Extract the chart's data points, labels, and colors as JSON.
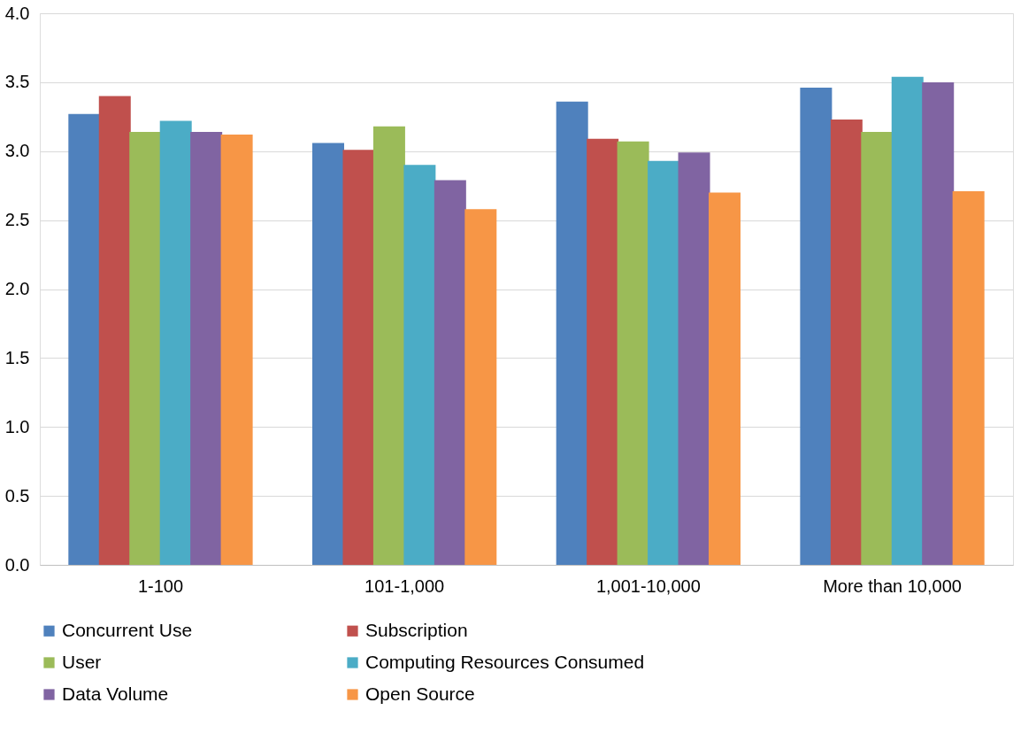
{
  "chart_data": {
    "type": "bar",
    "categories": [
      "1-100",
      "101-1,000",
      "1,001-10,000",
      "More than 10,000"
    ],
    "series": [
      {
        "name": "Concurrent Use",
        "color": "#4f81bd",
        "values": [
          3.27,
          3.06,
          3.36,
          3.46
        ]
      },
      {
        "name": "Subscription",
        "color": "#c0504d",
        "values": [
          3.4,
          3.01,
          3.09,
          3.23
        ]
      },
      {
        "name": "User",
        "color": "#9bbb59",
        "values": [
          3.14,
          3.18,
          3.07,
          3.14
        ]
      },
      {
        "name": "Computing Resources Consumed",
        "color": "#4bacc6",
        "values": [
          3.22,
          2.9,
          2.93,
          3.54
        ]
      },
      {
        "name": "Data Volume",
        "color": "#8064a2",
        "values": [
          3.14,
          2.79,
          2.99,
          3.5
        ]
      },
      {
        "name": "Open Source",
        "color": "#f79646",
        "values": [
          3.12,
          2.58,
          2.7,
          2.71
        ]
      }
    ],
    "ylim": [
      0,
      4.0
    ],
    "yticks": [
      {
        "value": 0,
        "label": "0.0"
      },
      {
        "value": 0.5,
        "label": "0.5"
      },
      {
        "value": 1,
        "label": "1.0"
      },
      {
        "value": 1.5,
        "label": "1.5"
      },
      {
        "value": 2,
        "label": "2.0"
      },
      {
        "value": 2.5,
        "label": "2.5"
      },
      {
        "value": 3,
        "label": "3.0"
      },
      {
        "value": 3.5,
        "label": "3.5"
      },
      {
        "value": 4,
        "label": "4.0"
      }
    ],
    "grid": "y",
    "legend": "bottom"
  }
}
